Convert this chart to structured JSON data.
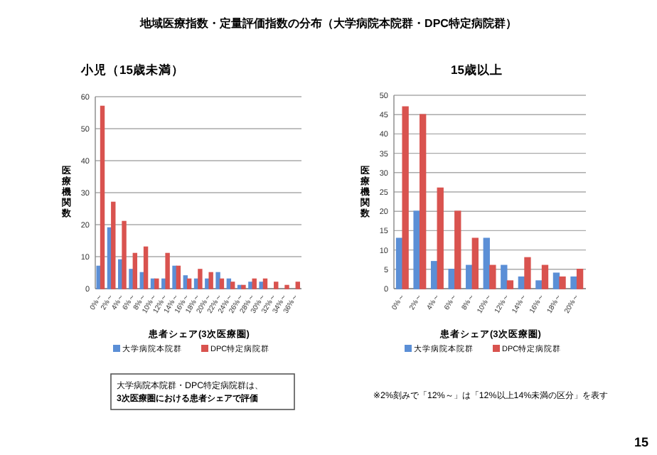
{
  "chart_data": [
    {
      "type": "bar",
      "title": "小児（15歳未満）",
      "xlabel": "患者シェア(3次医療圏)",
      "ylabel": "医療機関数",
      "categories": [
        "0%～",
        "2%～",
        "4%～",
        "6%～",
        "8%～",
        "10%～",
        "12%～",
        "14%～",
        "16%～",
        "18%～",
        "20%～",
        "22%～",
        "24%～",
        "26%～",
        "28%～",
        "30%～",
        "32%～",
        "34%～",
        "36%～"
      ],
      "series": [
        {
          "name": "大学病院本院群",
          "color": "#5b8fd6",
          "values": [
            7,
            19,
            9,
            6,
            5,
            3,
            3,
            7,
            4,
            3,
            3,
            5,
            3,
            1,
            2,
            2,
            0,
            0,
            0
          ]
        },
        {
          "name": "DPC特定病院群",
          "color": "#d9534f",
          "values": [
            57,
            27,
            21,
            11,
            13,
            3,
            11,
            7,
            3,
            6,
            5,
            3,
            2,
            1,
            3,
            3,
            2,
            1,
            2
          ]
        }
      ],
      "ylim": [
        0,
        60
      ],
      "yticks": [
        0,
        10,
        20,
        30,
        40,
        50,
        60
      ],
      "grid": "y",
      "legend": "bottom",
      "annotations": [
        "地域医療指数・定量評価指数の分布（大学病院本院群・DPC特定病院群）",
        "大学病院本院群・DPC特定病院群は、\n3次医療圏における患者シェアで評価"
      ]
    },
    {
      "type": "bar",
      "title": "15歳以上",
      "xlabel": "患者シェア(3次医療圏)",
      "ylabel": "医療機関数",
      "categories": [
        "0%～",
        "2%～",
        "4%～",
        "6%～",
        "8%～",
        "10%～",
        "12%～",
        "14%～",
        "16%～",
        "18%～",
        "20%～"
      ],
      "series": [
        {
          "name": "大学病院本院群",
          "color": "#5b8fd6",
          "values": [
            13,
            20,
            7,
            5,
            6,
            13,
            6,
            3,
            2,
            4,
            3
          ]
        },
        {
          "name": "DPC特定病院群",
          "color": "#d9534f",
          "values": [
            47,
            45,
            26,
            20,
            13,
            6,
            2,
            8,
            6,
            3,
            5
          ]
        }
      ],
      "ylim": [
        0,
        50
      ],
      "yticks": [
        0,
        5,
        10,
        15,
        20,
        25,
        30,
        35,
        40,
        45,
        50
      ],
      "grid": "y",
      "legend": "bottom",
      "annotations": [
        "※2%刻みで「12%～」は「12%以上14%未満の区分」を表す",
        "15"
      ]
    }
  ]
}
